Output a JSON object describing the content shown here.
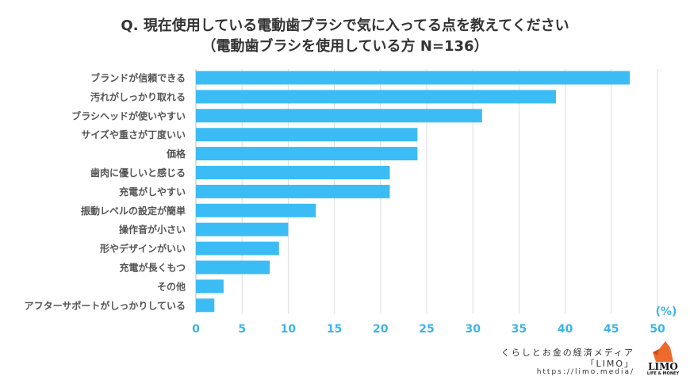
{
  "chart_data": {
    "type": "bar",
    "orientation": "horizontal",
    "title": "Q. 現在使用している電動歯ブラシで気に入ってる点を教えてください",
    "subtitle": "（電動歯ブラシを使用している方 N=136）",
    "categories": [
      "ブランドが信頼できる",
      "汚れがしっかり取れる",
      "ブラシヘッドが使いやすい",
      "サイズや重さが丁度いい",
      "価格",
      "歯肉に優しいと感じる",
      "充電がしやすい",
      "振動レベルの設定が簡単",
      "操作音が小さい",
      "形やデザインがいい",
      "充電が長くもつ",
      "その他",
      "アフターサポートがしっかりしている"
    ],
    "values": [
      47,
      39,
      31,
      24,
      24,
      21,
      21,
      13,
      10,
      9,
      8,
      3,
      2
    ],
    "xlim": [
      0,
      50
    ],
    "xticks": [
      "0",
      "5",
      "10",
      "15",
      "20",
      "25",
      "30",
      "35",
      "40",
      "45",
      "50"
    ],
    "unit_label": "(%)",
    "grid": true,
    "bar_color": "#3cbcf4",
    "tick_color": "#3cb4e8"
  },
  "credit": {
    "line1": "くらしとお金の経済メディア",
    "line2": "「LIMO」",
    "url": "https://limo.media/",
    "logo_text": "LIMO",
    "logo_sub": "LIFE & MONEY"
  }
}
